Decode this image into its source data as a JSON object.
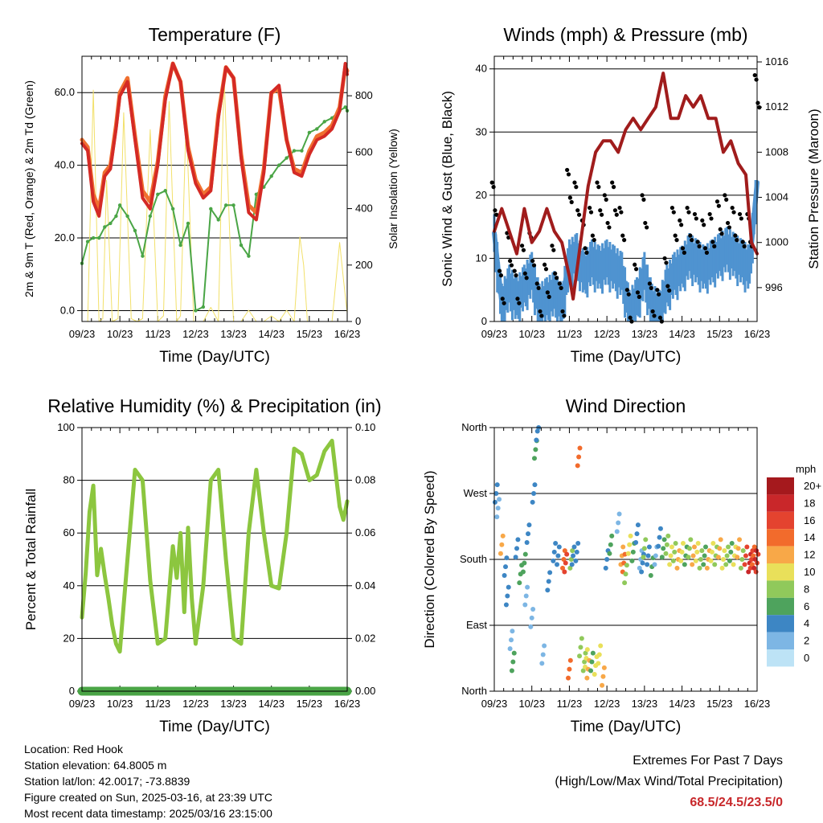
{
  "x_ticks": [
    "09/23",
    "10/23",
    "11/23",
    "12/23",
    "13/23",
    "14/23",
    "15/23",
    "16/23"
  ],
  "x_title": "Time (Day/UTC)",
  "info": {
    "location": "Location: Red Hook",
    "elevation": "Station elevation: 64.8005 m",
    "latlon": "Station lat/lon: 42.0017; -73.8839",
    "created": "Figure created on Sun, 2025-03-16, at 23:39 UTC",
    "recent": "Most recent data timestamp: 2025/03/16 23:15:00"
  },
  "extremes": {
    "title": "Extremes For Past 7 Days",
    "subtitle": "(High/Low/Max Wind/Total Precipitation)",
    "values": "68.5/24.5/23.5/0",
    "color": "#c8282b"
  },
  "chart_data": [
    {
      "type": "line",
      "title": "Temperature (F)",
      "xlabel": "Time (Day/UTC)",
      "ylabel": "2m & 9m T (Red, Orange) & 2m Td (Green)",
      "y2label": "Solar Insolation (Yellow)",
      "xlim": [
        9,
        16
      ],
      "ylim": [
        -3,
        70
      ],
      "y2lim": [
        0,
        940
      ],
      "yticks": [
        "0.0",
        "20.0",
        "40.0",
        "60.0"
      ],
      "y2ticks": [
        "0",
        "200",
        "400",
        "600",
        "800"
      ],
      "grid": "horizontal",
      "x": [
        9.0,
        9.15,
        9.3,
        9.45,
        9.6,
        9.75,
        9.9,
        10.0,
        10.2,
        10.4,
        10.6,
        10.8,
        11.0,
        11.2,
        11.4,
        11.6,
        11.8,
        12.0,
        12.2,
        12.4,
        12.6,
        12.8,
        13.0,
        13.2,
        13.4,
        13.6,
        13.8,
        14.0,
        14.2,
        14.4,
        14.6,
        14.8,
        15.0,
        15.2,
        15.4,
        15.6,
        15.8,
        15.95,
        16.0
      ],
      "series": [
        {
          "name": "2m T",
          "color": "#d42a25",
          "values": [
            46,
            44,
            30,
            26,
            37,
            39,
            50,
            59,
            63,
            47,
            31,
            28,
            40,
            58,
            68,
            63,
            44,
            35,
            31,
            33,
            53,
            67,
            64,
            42,
            27,
            25,
            38,
            60,
            62,
            47,
            38,
            37,
            43,
            47,
            48,
            50,
            55,
            68,
            65
          ]
        },
        {
          "name": "9m T",
          "color": "#f07030",
          "values": [
            47,
            45,
            32,
            28,
            38,
            40,
            51,
            60,
            64,
            48,
            33,
            30,
            41,
            59,
            68,
            63,
            45,
            36,
            32,
            34,
            54,
            67,
            64,
            43,
            29,
            27,
            39,
            60,
            61,
            47,
            39,
            38,
            44,
            48,
            49,
            51,
            56,
            67,
            66
          ]
        },
        {
          "name": "2m Td",
          "color": "#4aa546",
          "values": [
            13,
            19,
            20,
            20,
            23,
            24,
            26,
            29,
            26,
            22,
            15,
            26,
            32,
            33,
            28,
            18,
            24,
            0,
            1,
            28,
            25,
            29,
            29,
            18,
            15,
            32,
            34,
            37,
            40,
            42,
            44,
            44,
            49,
            50,
            52,
            53,
            55,
            56,
            55
          ]
        },
        {
          "name": "Solar Insolation",
          "axis": "y2",
          "color": "#f2e06a",
          "x": [
            9.15,
            9.3,
            9.45,
            9.55,
            9.65,
            9.8,
            9.95,
            10.1,
            10.3,
            10.45,
            10.6,
            10.8,
            11.0,
            11.15,
            11.3,
            11.5,
            11.6,
            11.75,
            11.95,
            12.2,
            12.4,
            12.6,
            12.75,
            12.9,
            13.0,
            13.2,
            13.4,
            13.6,
            13.8,
            14.0,
            14.2,
            14.4,
            14.6,
            14.75,
            14.85,
            14.95,
            15.2,
            15.6,
            15.8,
            15.9,
            16.0
          ],
          "values": [
            0,
            820,
            0,
            10,
            500,
            0,
            10,
            740,
            10,
            0,
            10,
            680,
            0,
            20,
            780,
            0,
            20,
            720,
            0,
            0,
            50,
            0,
            880,
            300,
            0,
            0,
            40,
            0,
            0,
            20,
            0,
            40,
            0,
            300,
            200,
            0,
            0,
            0,
            280,
            150,
            30
          ]
        }
      ]
    },
    {
      "type": "scatter",
      "title": "Winds (mph) & Pressure (mb)",
      "xlabel": "Time (Day/UTC)",
      "ylabel": "Sonic Wind & Gust (Blue, Black)",
      "y2label": "Station Pressure (Maroon)",
      "xlim": [
        9,
        16
      ],
      "ylim": [
        0,
        42
      ],
      "y2lim": [
        993,
        1016.5
      ],
      "yticks": [
        "0",
        "10",
        "20",
        "30",
        "40"
      ],
      "y2ticks": [
        "996",
        "1000",
        "1004",
        "1008",
        "1012",
        "1016"
      ],
      "grid": "horizontal",
      "series": [
        {
          "name": "Sonic Wind",
          "color": "#4f93d0",
          "marker": "line",
          "x": [
            9.0,
            9.2,
            9.4,
            9.6,
            9.8,
            10.0,
            10.2,
            10.4,
            10.6,
            10.8,
            11.0,
            11.2,
            11.4,
            11.6,
            11.8,
            12.0,
            12.2,
            12.4,
            12.6,
            12.8,
            13.0,
            13.2,
            13.4,
            13.6,
            13.8,
            14.0,
            14.2,
            14.4,
            14.6,
            14.8,
            15.0,
            15.2,
            15.4,
            15.6,
            15.8,
            16.0
          ],
          "values": [
            14,
            3,
            6,
            4,
            6,
            8,
            3,
            4,
            5,
            3,
            10,
            11,
            8,
            10,
            9,
            10,
            9,
            8,
            2,
            4,
            8,
            3,
            2,
            6,
            8,
            9,
            11,
            10,
            9,
            10,
            11,
            12,
            11,
            10,
            9,
            22
          ]
        },
        {
          "name": "Gust",
          "color": "#000000",
          "marker": "dot",
          "x": [
            9.0,
            9.2,
            9.4,
            9.6,
            9.8,
            10.0,
            10.2,
            10.4,
            10.6,
            10.8,
            11.0,
            11.2,
            11.4,
            11.6,
            11.8,
            12.0,
            12.2,
            12.4,
            12.6,
            12.8,
            13.0,
            13.2,
            13.4,
            13.6,
            13.8,
            14.0,
            14.2,
            14.4,
            14.6,
            14.8,
            15.0,
            15.2,
            15.4,
            15.6,
            15.8,
            16.0
          ],
          "values": [
            22,
            8,
            14,
            8,
            12,
            14,
            6,
            9,
            12,
            6,
            24,
            22,
            16,
            18,
            22,
            20,
            22,
            18,
            5,
            9,
            20,
            6,
            5,
            10,
            18,
            16,
            18,
            17,
            16,
            17,
            19,
            20,
            18,
            17,
            17,
            39
          ]
        },
        {
          "name": "Station Pressure",
          "axis": "y2",
          "color": "#a01c1c",
          "marker": "line",
          "x": [
            9.0,
            9.2,
            9.4,
            9.6,
            9.8,
            10.0,
            10.2,
            10.4,
            10.6,
            10.8,
            11.0,
            11.1,
            11.3,
            11.5,
            11.7,
            11.9,
            12.1,
            12.3,
            12.5,
            12.7,
            12.9,
            13.1,
            13.3,
            13.5,
            13.7,
            13.9,
            14.1,
            14.3,
            14.5,
            14.7,
            14.9,
            15.1,
            15.3,
            15.5,
            15.7,
            15.85,
            16.0
          ],
          "values": [
            1001,
            1003,
            1001,
            999,
            1003,
            1000,
            1001,
            1003,
            1001,
            1000,
            997,
            995,
            1000,
            1005,
            1008,
            1009,
            1009,
            1008,
            1010,
            1011,
            1010,
            1011,
            1012,
            1015,
            1011,
            1011,
            1013,
            1012,
            1013,
            1011,
            1011,
            1008,
            1009,
            1007,
            1006,
            1000,
            999
          ]
        }
      ]
    },
    {
      "type": "line",
      "title": "Relative Humidity (%) & Precipitation (in)",
      "xlabel": "Time (Day/UTC)",
      "ylabel": "Percent & Total Rainfall",
      "xlim": [
        9,
        16
      ],
      "ylim": [
        0,
        100
      ],
      "y2lim": [
        0,
        0.1
      ],
      "yticks": [
        "0",
        "20",
        "40",
        "60",
        "80",
        "100"
      ],
      "y2ticks": [
        "0.00",
        "0.02",
        "0.04",
        "0.06",
        "0.08",
        "0.10"
      ],
      "grid": "horizontal",
      "x": [
        9.0,
        9.1,
        9.2,
        9.3,
        9.4,
        9.5,
        9.6,
        9.7,
        9.8,
        9.9,
        10.0,
        10.2,
        10.4,
        10.6,
        10.8,
        11.0,
        11.2,
        11.4,
        11.5,
        11.6,
        11.7,
        11.8,
        11.9,
        12.0,
        12.2,
        12.4,
        12.6,
        12.8,
        13.0,
        13.2,
        13.4,
        13.6,
        13.8,
        14.0,
        14.2,
        14.4,
        14.6,
        14.8,
        15.0,
        15.2,
        15.4,
        15.6,
        15.8,
        15.9,
        16.0
      ],
      "series": [
        {
          "name": "Relative Humidity",
          "color": "#8cc63f",
          "values": [
            28,
            45,
            68,
            78,
            44,
            54,
            44,
            35,
            25,
            18,
            15,
            50,
            84,
            80,
            42,
            18,
            20,
            55,
            43,
            60,
            30,
            62,
            35,
            18,
            40,
            80,
            84,
            50,
            20,
            18,
            60,
            84,
            60,
            40,
            39,
            60,
            92,
            90,
            80,
            82,
            91,
            95,
            70,
            65,
            72
          ]
        },
        {
          "name": "Total Precipitation",
          "axis": "y2",
          "color": "#4aa546",
          "values": [
            0,
            0,
            0,
            0,
            0,
            0,
            0,
            0,
            0,
            0,
            0,
            0,
            0,
            0,
            0,
            0,
            0,
            0,
            0,
            0,
            0,
            0,
            0,
            0,
            0,
            0,
            0,
            0,
            0,
            0,
            0,
            0,
            0,
            0,
            0,
            0,
            0,
            0,
            0,
            0,
            0,
            0,
            0,
            0,
            0
          ]
        }
      ]
    },
    {
      "type": "scatter",
      "title": "Wind Direction",
      "xlabel": "Time (Day/UTC)",
      "ylabel": "Direction (Colored By Speed)",
      "xlim": [
        9,
        16
      ],
      "ylim": [
        0,
        360
      ],
      "yticks": [
        "North",
        "East",
        "South",
        "West",
        "North"
      ],
      "grid": "horizontal",
      "legend": {
        "title": "mph",
        "labels": [
          "20+",
          "18",
          "16",
          "14",
          "12",
          "10",
          "8",
          "6",
          "4",
          "2",
          "0"
        ],
        "colors": [
          "#a5191d",
          "#c9272a",
          "#e4432f",
          "#f26b2c",
          "#f8a848",
          "#e9e05a",
          "#90c95b",
          "#4ea35d",
          "#3d86c4",
          "#7db6e4",
          "#bde3f6"
        ]
      },
      "series": [
        {
          "name": "Direction",
          "color": "by speed",
          "x": [
            9.05,
            9.1,
            9.2,
            9.3,
            9.35,
            9.45,
            9.5,
            9.6,
            9.7,
            9.8,
            9.85,
            9.9,
            10.0,
            10.05,
            10.1,
            10.15,
            10.3,
            10.45,
            10.6,
            10.7,
            10.85,
            10.9,
            11.0,
            11.05,
            11.1,
            11.2,
            11.25,
            11.3,
            11.4,
            11.45,
            11.5,
            11.6,
            11.7,
            11.8,
            11.9,
            12.0,
            12.1,
            12.3,
            12.4,
            12.45,
            12.5,
            12.6,
            12.7,
            12.8,
            12.9,
            12.95,
            13.0,
            13.1,
            13.2,
            13.3,
            13.4,
            13.5,
            13.6,
            13.7,
            13.8,
            13.9,
            14.0,
            14.1,
            14.2,
            14.3,
            14.4,
            14.5,
            14.6,
            14.7,
            14.8,
            14.9,
            15.0,
            15.1,
            15.2,
            15.3,
            15.4,
            15.5,
            15.6,
            15.7,
            15.8,
            15.85,
            15.9,
            15.95,
            16.0
          ],
          "values": [
            270,
            250,
            200,
            170,
            130,
            70,
            40,
            195,
            160,
            175,
            130,
            215,
            100,
            270,
            330,
            355,
            50,
            150,
            190,
            185,
            180,
            175,
            30,
            180,
            185,
            190,
            320,
            60,
            40,
            45,
            30,
            40,
            35,
            50,
            20,
            180,
            200,
            230,
            185,
            175,
            160,
            200,
            190,
            215,
            180,
            175,
            195,
            185,
            170,
            185,
            210,
            195,
            200,
            185,
            190,
            180,
            190,
            185,
            195,
            185,
            190,
            180,
            185,
            180,
            190,
            185,
            195,
            180,
            185,
            190,
            185,
            195,
            180,
            185,
            175,
            180,
            185,
            180,
            175
          ],
          "speeds": [
            4,
            2,
            12,
            4,
            4,
            2,
            6,
            4,
            6,
            6,
            2,
            4,
            2,
            4,
            6,
            4,
            2,
            4,
            4,
            4,
            14,
            16,
            14,
            8,
            4,
            4,
            14,
            8,
            8,
            10,
            12,
            6,
            10,
            10,
            12,
            4,
            6,
            2,
            12,
            14,
            8,
            10,
            6,
            4,
            2,
            4,
            8,
            4,
            6,
            2,
            4,
            6,
            8,
            10,
            8,
            12,
            10,
            6,
            8,
            12,
            10,
            8,
            6,
            12,
            10,
            8,
            12,
            10,
            8,
            6,
            10,
            12,
            8,
            16,
            18,
            16,
            14,
            18,
            16
          ]
        }
      ]
    }
  ]
}
